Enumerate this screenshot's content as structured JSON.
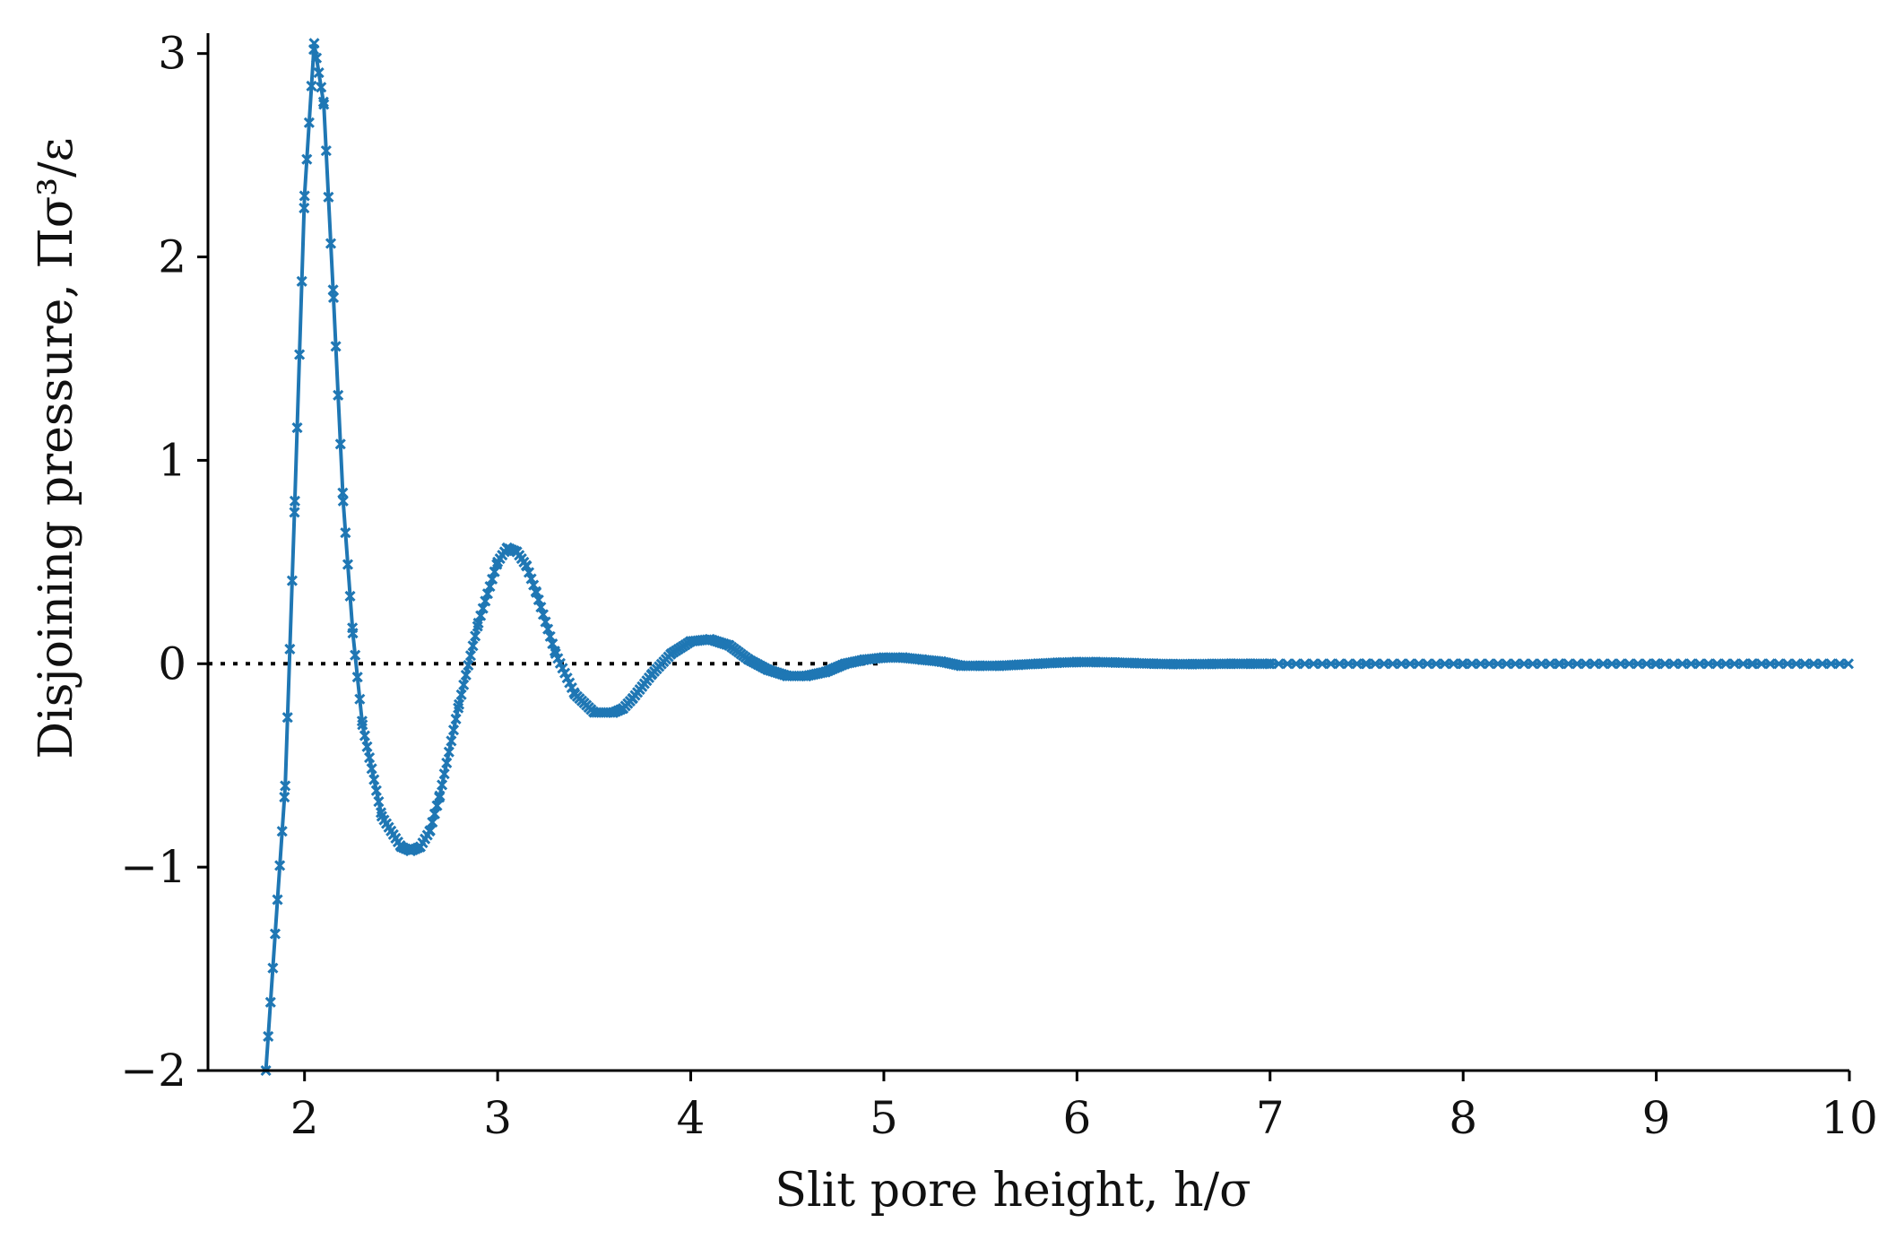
{
  "chart_data": {
    "type": "line",
    "xlabel": "Slit pore height, h/σ",
    "ylabel": "Disjoining pressure, Πσ³/ε",
    "xlim": [
      1.5,
      10
    ],
    "ylim": [
      -2,
      3.1
    ],
    "xticks": [
      2,
      3,
      4,
      5,
      6,
      7,
      8,
      9,
      10
    ],
    "xtick_labels": [
      "2",
      "3",
      "4",
      "5",
      "6",
      "7",
      "8",
      "9",
      "10"
    ],
    "yticks": [
      -2,
      -1,
      0,
      1,
      2,
      3
    ],
    "ytick_labels": [
      "−2",
      "−1",
      "0",
      "1",
      "2",
      "3"
    ],
    "grid": false,
    "legend": "none",
    "series": [
      {
        "color": "#1f77b4",
        "marker": "x",
        "x": [
          1.8,
          1.9,
          1.95,
          2.0,
          2.05,
          2.1,
          2.15,
          2.2,
          2.25,
          2.3,
          2.4,
          2.5,
          2.55,
          2.6,
          2.65,
          2.7,
          2.8,
          2.9,
          3.0,
          3.05,
          3.1,
          3.15,
          3.2,
          3.3,
          3.4,
          3.5,
          3.6,
          3.65,
          3.7,
          3.8,
          3.9,
          4.0,
          4.1,
          4.2,
          4.3,
          4.4,
          4.5,
          4.6,
          4.7,
          4.8,
          4.9,
          5.0,
          5.1,
          5.2,
          5.3,
          5.4,
          5.5,
          5.6,
          5.7,
          5.8,
          5.9,
          6.0,
          6.1,
          6.2,
          6.3,
          6.4,
          6.5,
          6.6,
          6.7,
          6.8,
          6.9,
          7.0,
          7.5,
          8.0,
          8.5,
          9.0,
          9.5,
          10.0
        ],
        "y": [
          -2.0,
          -0.6,
          0.8,
          2.3,
          3.05,
          2.75,
          1.8,
          0.8,
          0.15,
          -0.3,
          -0.75,
          -0.9,
          -0.92,
          -0.9,
          -0.82,
          -0.65,
          -0.2,
          0.2,
          0.5,
          0.57,
          0.55,
          0.48,
          0.35,
          0.05,
          -0.15,
          -0.24,
          -0.24,
          -0.22,
          -0.17,
          -0.05,
          0.05,
          0.11,
          0.12,
          0.09,
          0.02,
          -0.03,
          -0.06,
          -0.06,
          -0.04,
          0.0,
          0.02,
          0.03,
          0.03,
          0.02,
          0.01,
          -0.01,
          -0.01,
          -0.01,
          -0.005,
          0.0,
          0.005,
          0.008,
          0.008,
          0.006,
          0.003,
          0.0,
          -0.002,
          -0.002,
          -0.001,
          0.0,
          0.0,
          0.0,
          0.0,
          0.0,
          0.0,
          0.0,
          0.0,
          0.0
        ]
      }
    ],
    "reference_lines": [
      {
        "y": 0,
        "x_from": 1.5,
        "x_to": 5.0,
        "style": "dotted",
        "color": "#000000"
      }
    ]
  }
}
